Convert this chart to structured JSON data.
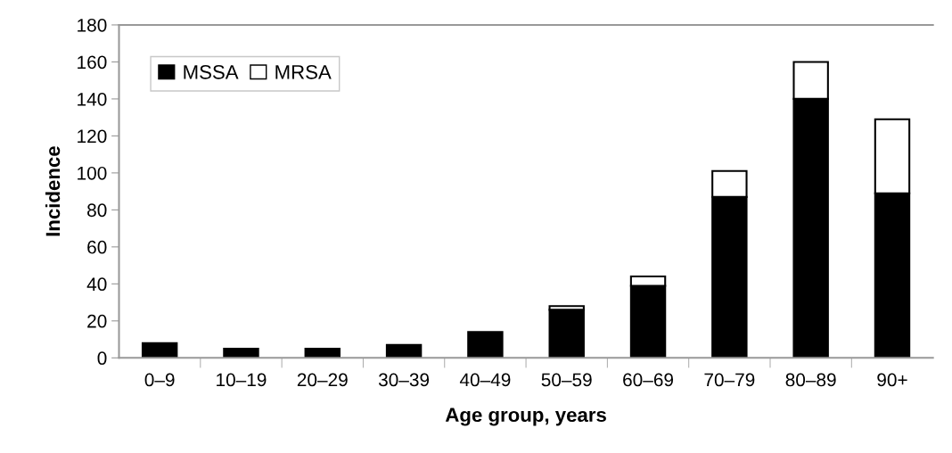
{
  "chart_data": {
    "type": "bar",
    "stacked": true,
    "xlabel": "Age group, years",
    "ylabel": "Incidence",
    "categories": [
      "0–9",
      "10–19",
      "20–29",
      "30–39",
      "40–49",
      "50–59",
      "60–69",
      "70–79",
      "80–89",
      "90+"
    ],
    "series": [
      {
        "name": "MSSA",
        "color": "#000000",
        "values": [
          8,
          5,
          5,
          7,
          14,
          26,
          39,
          87,
          140,
          89
        ]
      },
      {
        "name": "MRSA",
        "color": "#ffffff",
        "values": [
          null,
          null,
          null,
          null,
          null,
          2,
          5,
          14,
          20,
          40
        ]
      }
    ],
    "ylim": [
      0,
      180
    ],
    "yticks": [
      0,
      20,
      40,
      60,
      80,
      100,
      120,
      140,
      160,
      180
    ],
    "grid": false,
    "legend": "top left"
  }
}
